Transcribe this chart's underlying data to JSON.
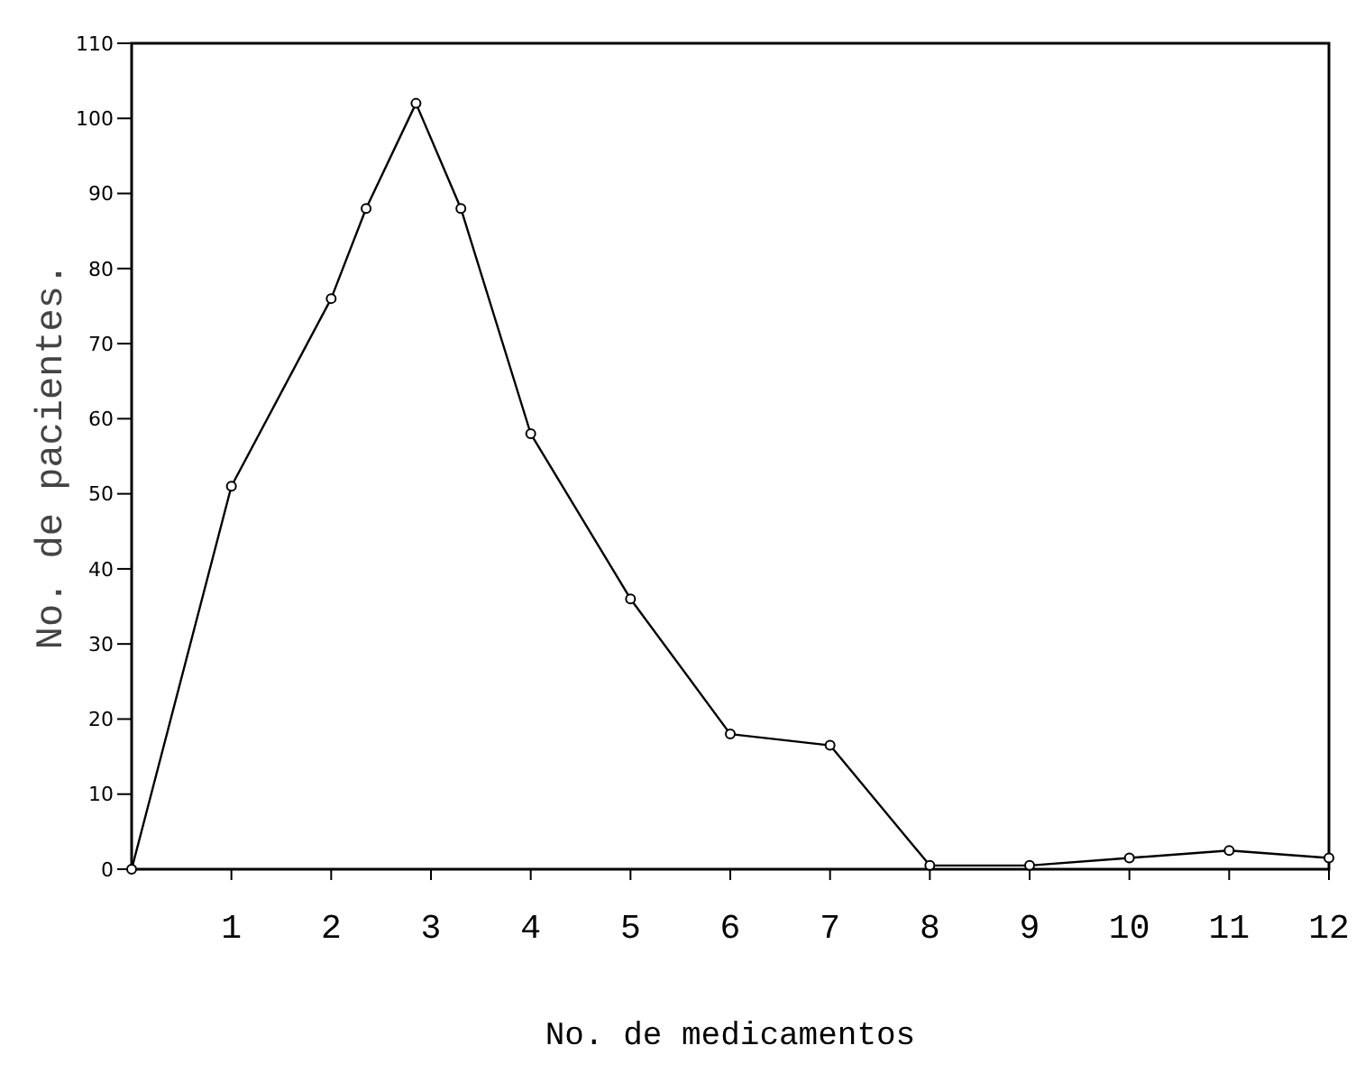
{
  "chart_data": {
    "type": "line",
    "xlabel": "No. de medicamentos",
    "ylabel": "No. de pacientes.",
    "series": [
      {
        "color": "#000000",
        "x": [
          0,
          1,
          2,
          2.35,
          2.85,
          3.3,
          4,
          5,
          6,
          7,
          8,
          9,
          10,
          11,
          12
        ],
        "values": [
          0,
          51,
          76,
          88,
          102,
          88,
          58,
          36,
          18,
          16.5,
          0.5,
          0.5,
          1.5,
          2.5,
          1.5
        ]
      }
    ],
    "xlim": [
      0,
      12
    ],
    "xticks": [
      1,
      2,
      3,
      4,
      5,
      6,
      7,
      8,
      9,
      10,
      11,
      12
    ],
    "ylim": [
      0,
      110
    ],
    "yticks": [
      0,
      10,
      20,
      30,
      40,
      50,
      60,
      70,
      80,
      90,
      100,
      110
    ],
    "grid": false,
    "marker": "circle",
    "line_style": "solid"
  }
}
